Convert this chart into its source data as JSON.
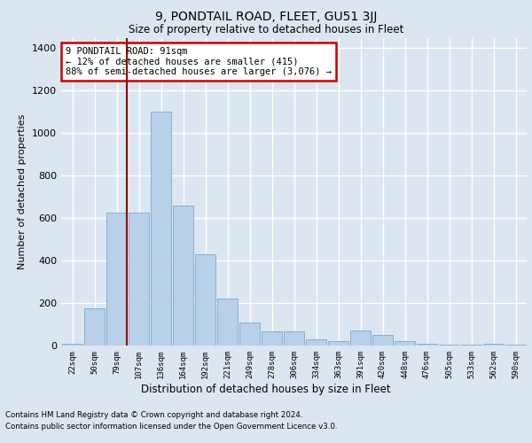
{
  "title": "9, PONDTAIL ROAD, FLEET, GU51 3JJ",
  "subtitle": "Size of property relative to detached houses in Fleet",
  "xlabel": "Distribution of detached houses by size in Fleet",
  "ylabel": "Number of detached properties",
  "footer_line1": "Contains HM Land Registry data © Crown copyright and database right 2024.",
  "footer_line2": "Contains public sector information licensed under the Open Government Licence v3.0.",
  "annotation_line1": "9 PONDTAIL ROAD: 91sqm",
  "annotation_line2": "← 12% of detached houses are smaller (415)",
  "annotation_line3": "88% of semi-detached houses are larger (3,076) →",
  "bar_color": "#b8d0e8",
  "bar_edge_color": "#6ca0c8",
  "vline_color": "#8b0000",
  "annotation_box_edge_color": "#cc0000",
  "background_color": "#dce6f0",
  "categories": [
    "22sqm",
    "50sqm",
    "79sqm",
    "107sqm",
    "136sqm",
    "164sqm",
    "192sqm",
    "221sqm",
    "249sqm",
    "278sqm",
    "306sqm",
    "334sqm",
    "363sqm",
    "391sqm",
    "420sqm",
    "448sqm",
    "476sqm",
    "505sqm",
    "533sqm",
    "562sqm",
    "590sqm"
  ],
  "values": [
    10,
    175,
    625,
    625,
    1100,
    660,
    430,
    220,
    110,
    65,
    65,
    30,
    20,
    70,
    50,
    20,
    10,
    5,
    5,
    10,
    5
  ],
  "vline_x": 2.45,
  "ylim": [
    0,
    1450
  ],
  "yticks": [
    0,
    200,
    400,
    600,
    800,
    1000,
    1200,
    1400
  ]
}
